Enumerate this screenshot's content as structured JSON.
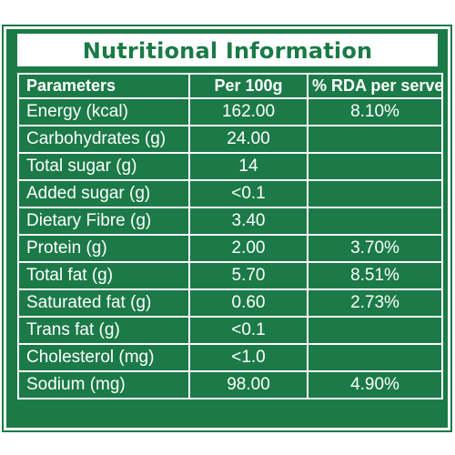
{
  "title": "Nutritional Information",
  "headers": [
    "Parameters",
    "Per 100g",
    "% RDA per serve"
  ],
  "rows": [
    {
      "parameter": "Energy (kcal)",
      "per100g": "162.00",
      "rda": "8.10%"
    },
    {
      "parameter": "Carbohydrates (g)",
      "per100g": "24.00",
      "rda": ""
    },
    {
      "parameter": "Total sugar (g)",
      "per100g": "14",
      "rda": ""
    },
    {
      "parameter": "Added sugar (g)",
      "per100g": "<0.1",
      "rda": ""
    },
    {
      "parameter": "Dietary Fibre (g)",
      "per100g": "3.40",
      "rda": ""
    },
    {
      "parameter": "Protein (g)",
      "per100g": "2.00",
      "rda": "3.70%"
    },
    {
      "parameter": "Total fat (g)",
      "per100g": "5.70",
      "rda": "8.51%"
    },
    {
      "parameter": "Saturated fat (g)",
      "per100g": "0.60",
      "rda": "2.73%"
    },
    {
      "parameter": "Trans fat (g)",
      "per100g": "<0.1",
      "rda": ""
    },
    {
      "parameter": "Cholesterol (mg)",
      "per100g": "<1.0",
      "rda": ""
    },
    {
      "parameter": "Sodium (mg)",
      "per100g": "98.00",
      "rda": "4.90%"
    }
  ],
  "colors": {
    "panel_green": "#1b7a47",
    "text_white": "#ffffff"
  }
}
